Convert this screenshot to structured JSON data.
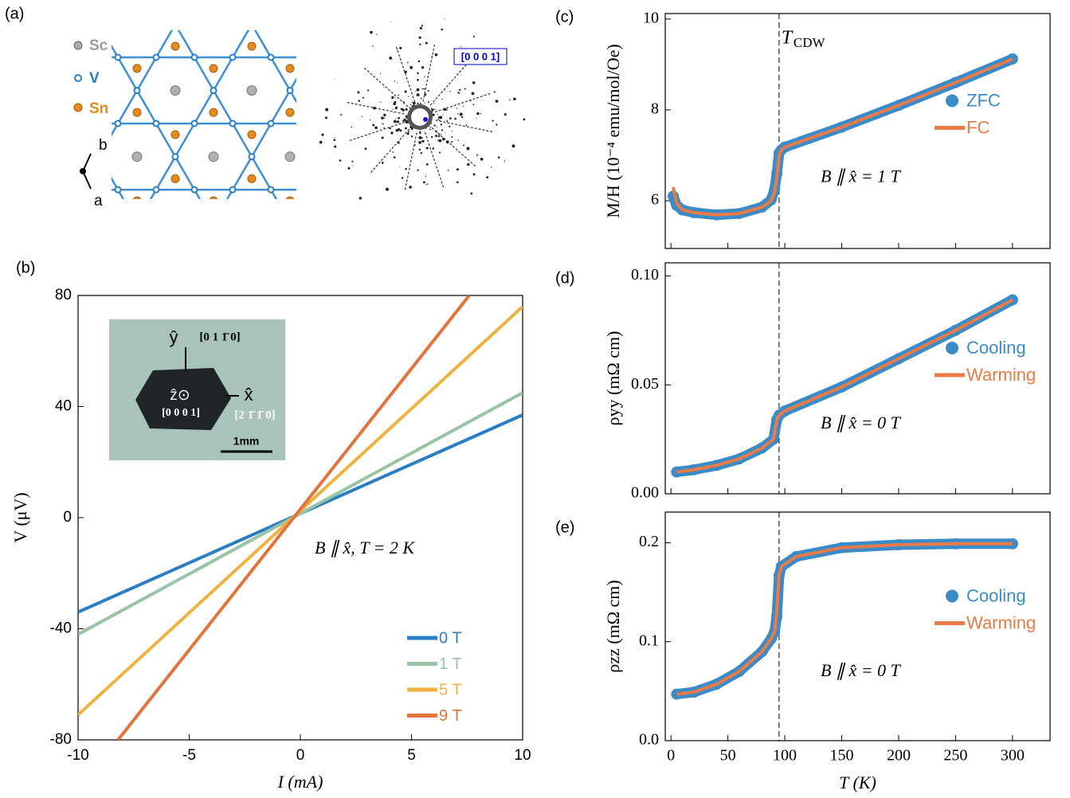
{
  "panel_a": {
    "panel_label": "(a)",
    "legend": [
      "Sc",
      "V",
      "Sn"
    ],
    "axis_b": "b",
    "axis_a": "a",
    "zone_axis": "[0 0 0 1]"
  },
  "inset": {
    "y_axis": "ŷ",
    "y_dir": "[0 1 1̄ 0]",
    "z_axis": "ẑ⊙",
    "z_dir": "[0 0 0 1]",
    "x_axis": "x̂",
    "x_dir": "[2 1̄ 1̄ 0]",
    "scale": "1mm"
  },
  "chart_data": [
    {
      "type": "line",
      "panel_label": "(b)",
      "xlabel": "I (mA)",
      "ylabel": "V (μV)",
      "annotation": "B ∥ x̂,  T = 2 K",
      "xlim": [
        -10,
        10
      ],
      "ylim": [
        -80,
        80
      ],
      "xticks": [
        -10,
        -5,
        0,
        5,
        10
      ],
      "yticks": [
        -80,
        -40,
        0,
        40,
        80
      ],
      "legend": "lower right",
      "series": [
        {
          "name": "0 T",
          "color": "#2a7ec3",
          "x": [
            -10,
            10
          ],
          "values": [
            -34,
            37
          ]
        },
        {
          "name": "1 T",
          "color": "#98c4a5",
          "x": [
            -10,
            10
          ],
          "values": [
            -42,
            45
          ]
        },
        {
          "name": "5 T",
          "color": "#efb23f",
          "x": [
            -10,
            10
          ],
          "values": [
            -71,
            76
          ]
        },
        {
          "name": "9 T",
          "color": "#e2733a",
          "x": [
            -8.2,
            7.6
          ],
          "values": [
            -80,
            80
          ]
        }
      ]
    },
    {
      "type": "scatter-line",
      "panel_label": "(c)",
      "ylabel": "M/H (10⁻⁴ emu/mol/Oe)",
      "annotation": "B ∥ x̂ = 1 T",
      "cdw_symbol": "T",
      "cdw_sub": "CDW",
      "vline": 95,
      "xlim": [
        -5,
        333
      ],
      "ylim": [
        4.95,
        10.12
      ],
      "xticks": [
        0,
        50,
        100,
        150,
        200,
        250,
        300
      ],
      "yticks": [
        6,
        8,
        10
      ],
      "legend": "center right",
      "x": [
        2,
        5,
        10,
        20,
        40,
        60,
        80,
        88,
        91,
        93,
        95,
        97,
        100,
        150,
        200,
        250,
        300
      ],
      "series": [
        {
          "name": "ZFC",
          "color": "#3c8bc9",
          "style": "scatter",
          "values": [
            6.1,
            5.9,
            5.8,
            5.74,
            5.69,
            5.72,
            5.86,
            6.02,
            6.25,
            6.6,
            7.05,
            7.12,
            7.18,
            7.62,
            8.1,
            8.6,
            9.12
          ]
        },
        {
          "name": "FC",
          "color": "#ea7a46",
          "style": "line",
          "values": [
            6.3,
            5.95,
            5.8,
            5.74,
            5.69,
            5.72,
            5.86,
            6.0,
            6.2,
            6.5,
            7.0,
            7.12,
            7.18,
            7.62,
            8.1,
            8.6,
            9.12
          ]
        }
      ]
    },
    {
      "type": "scatter-line",
      "panel_label": "(d)",
      "ylabel": "ρyy (mΩ cm)",
      "annotation": "B ∥ x̂ = 0 T",
      "vline": 95,
      "xlim": [
        -5,
        333
      ],
      "ylim": [
        0,
        0.106
      ],
      "xticks": [
        0,
        50,
        100,
        150,
        200,
        250,
        300
      ],
      "yticks": [
        {
          "value": 0,
          "label": "0.00"
        },
        {
          "value": 0.05,
          "label": "0.05"
        },
        {
          "value": 0.1,
          "label": "0.10"
        }
      ],
      "legend": "center right",
      "x": [
        5,
        20,
        40,
        60,
        80,
        90,
        93,
        95,
        100,
        150,
        200,
        250,
        300
      ],
      "series": [
        {
          "name": "Cooling",
          "color": "#3c8bc9",
          "style": "scatter",
          "values": [
            0.01,
            0.011,
            0.013,
            0.016,
            0.021,
            0.025,
            0.034,
            0.036,
            0.038,
            0.049,
            0.062,
            0.075,
            0.089
          ]
        },
        {
          "name": "Warming",
          "color": "#ea7a46",
          "style": "line",
          "values": [
            0.01,
            0.011,
            0.013,
            0.016,
            0.021,
            0.025,
            0.034,
            0.036,
            0.038,
            0.049,
            0.062,
            0.075,
            0.089
          ]
        }
      ]
    },
    {
      "type": "scatter-line",
      "panel_label": "(e)",
      "xlabel": "T (K)",
      "ylabel": "ρzz (mΩ cm)",
      "annotation": "B ∥ x̂ = 0 T",
      "vline": 95,
      "xlim": [
        -5,
        333
      ],
      "ylim": [
        0,
        0.231
      ],
      "xticks": [
        0,
        50,
        100,
        150,
        200,
        250,
        300
      ],
      "yticks": [
        {
          "value": 0,
          "label": "0.0"
        },
        {
          "value": 0.1,
          "label": "0.1"
        },
        {
          "value": 0.2,
          "label": "0.2"
        }
      ],
      "legend": "center right",
      "x": [
        5,
        20,
        40,
        60,
        80,
        88,
        91,
        93,
        95,
        97,
        110,
        150,
        200,
        250,
        300
      ],
      "series": [
        {
          "name": "Cooling",
          "color": "#3c8bc9",
          "style": "scatter",
          "values": [
            0.047,
            0.049,
            0.057,
            0.07,
            0.09,
            0.103,
            0.11,
            0.126,
            0.167,
            0.176,
            0.186,
            0.195,
            0.198,
            0.199,
            0.199
          ]
        },
        {
          "name": "Warming",
          "color": "#ea7a46",
          "style": "line",
          "values": [
            0.047,
            0.049,
            0.057,
            0.07,
            0.09,
            0.103,
            0.11,
            0.13,
            0.168,
            0.176,
            0.186,
            0.195,
            0.198,
            0.199,
            0.199
          ]
        }
      ]
    }
  ]
}
